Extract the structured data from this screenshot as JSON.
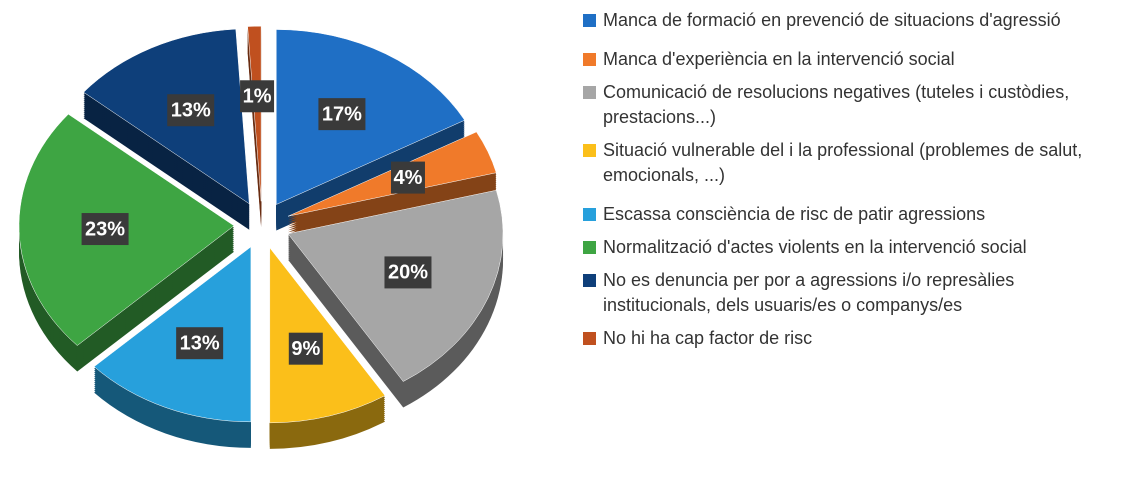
{
  "chart_data": {
    "type": "pie",
    "categories": [
      "Manca de formació en prevenció de situacions d'agressió",
      "Manca d'experiència en la intervenció social",
      "Comunicació de resolucions negatives (tuteles i custòdies, prestacions...)",
      "Situació vulnerable del i la professional (problemes de salut, emocionals, ...)",
      "Escassa consciència de risc de patir agressions",
      "Normalització d'actes violents en la intervenció social",
      "No es denuncia per por a agressions i/o represàlies institucionals, dels usuaris/es o companys/es",
      "No hi ha cap factor de risc"
    ],
    "values": [
      17,
      4,
      20,
      9,
      13,
      23,
      13,
      1
    ],
    "value_labels": [
      "17%",
      "4%",
      "20%",
      "9%",
      "13%",
      "23%",
      "13%",
      "1%"
    ],
    "colors": [
      "#1f6fc5",
      "#f07a2a",
      "#a6a6a6",
      "#fbbf1a",
      "#27a0dc",
      "#3ea543",
      "#0e3f7a",
      "#c0501f"
    ],
    "legend": "right"
  }
}
